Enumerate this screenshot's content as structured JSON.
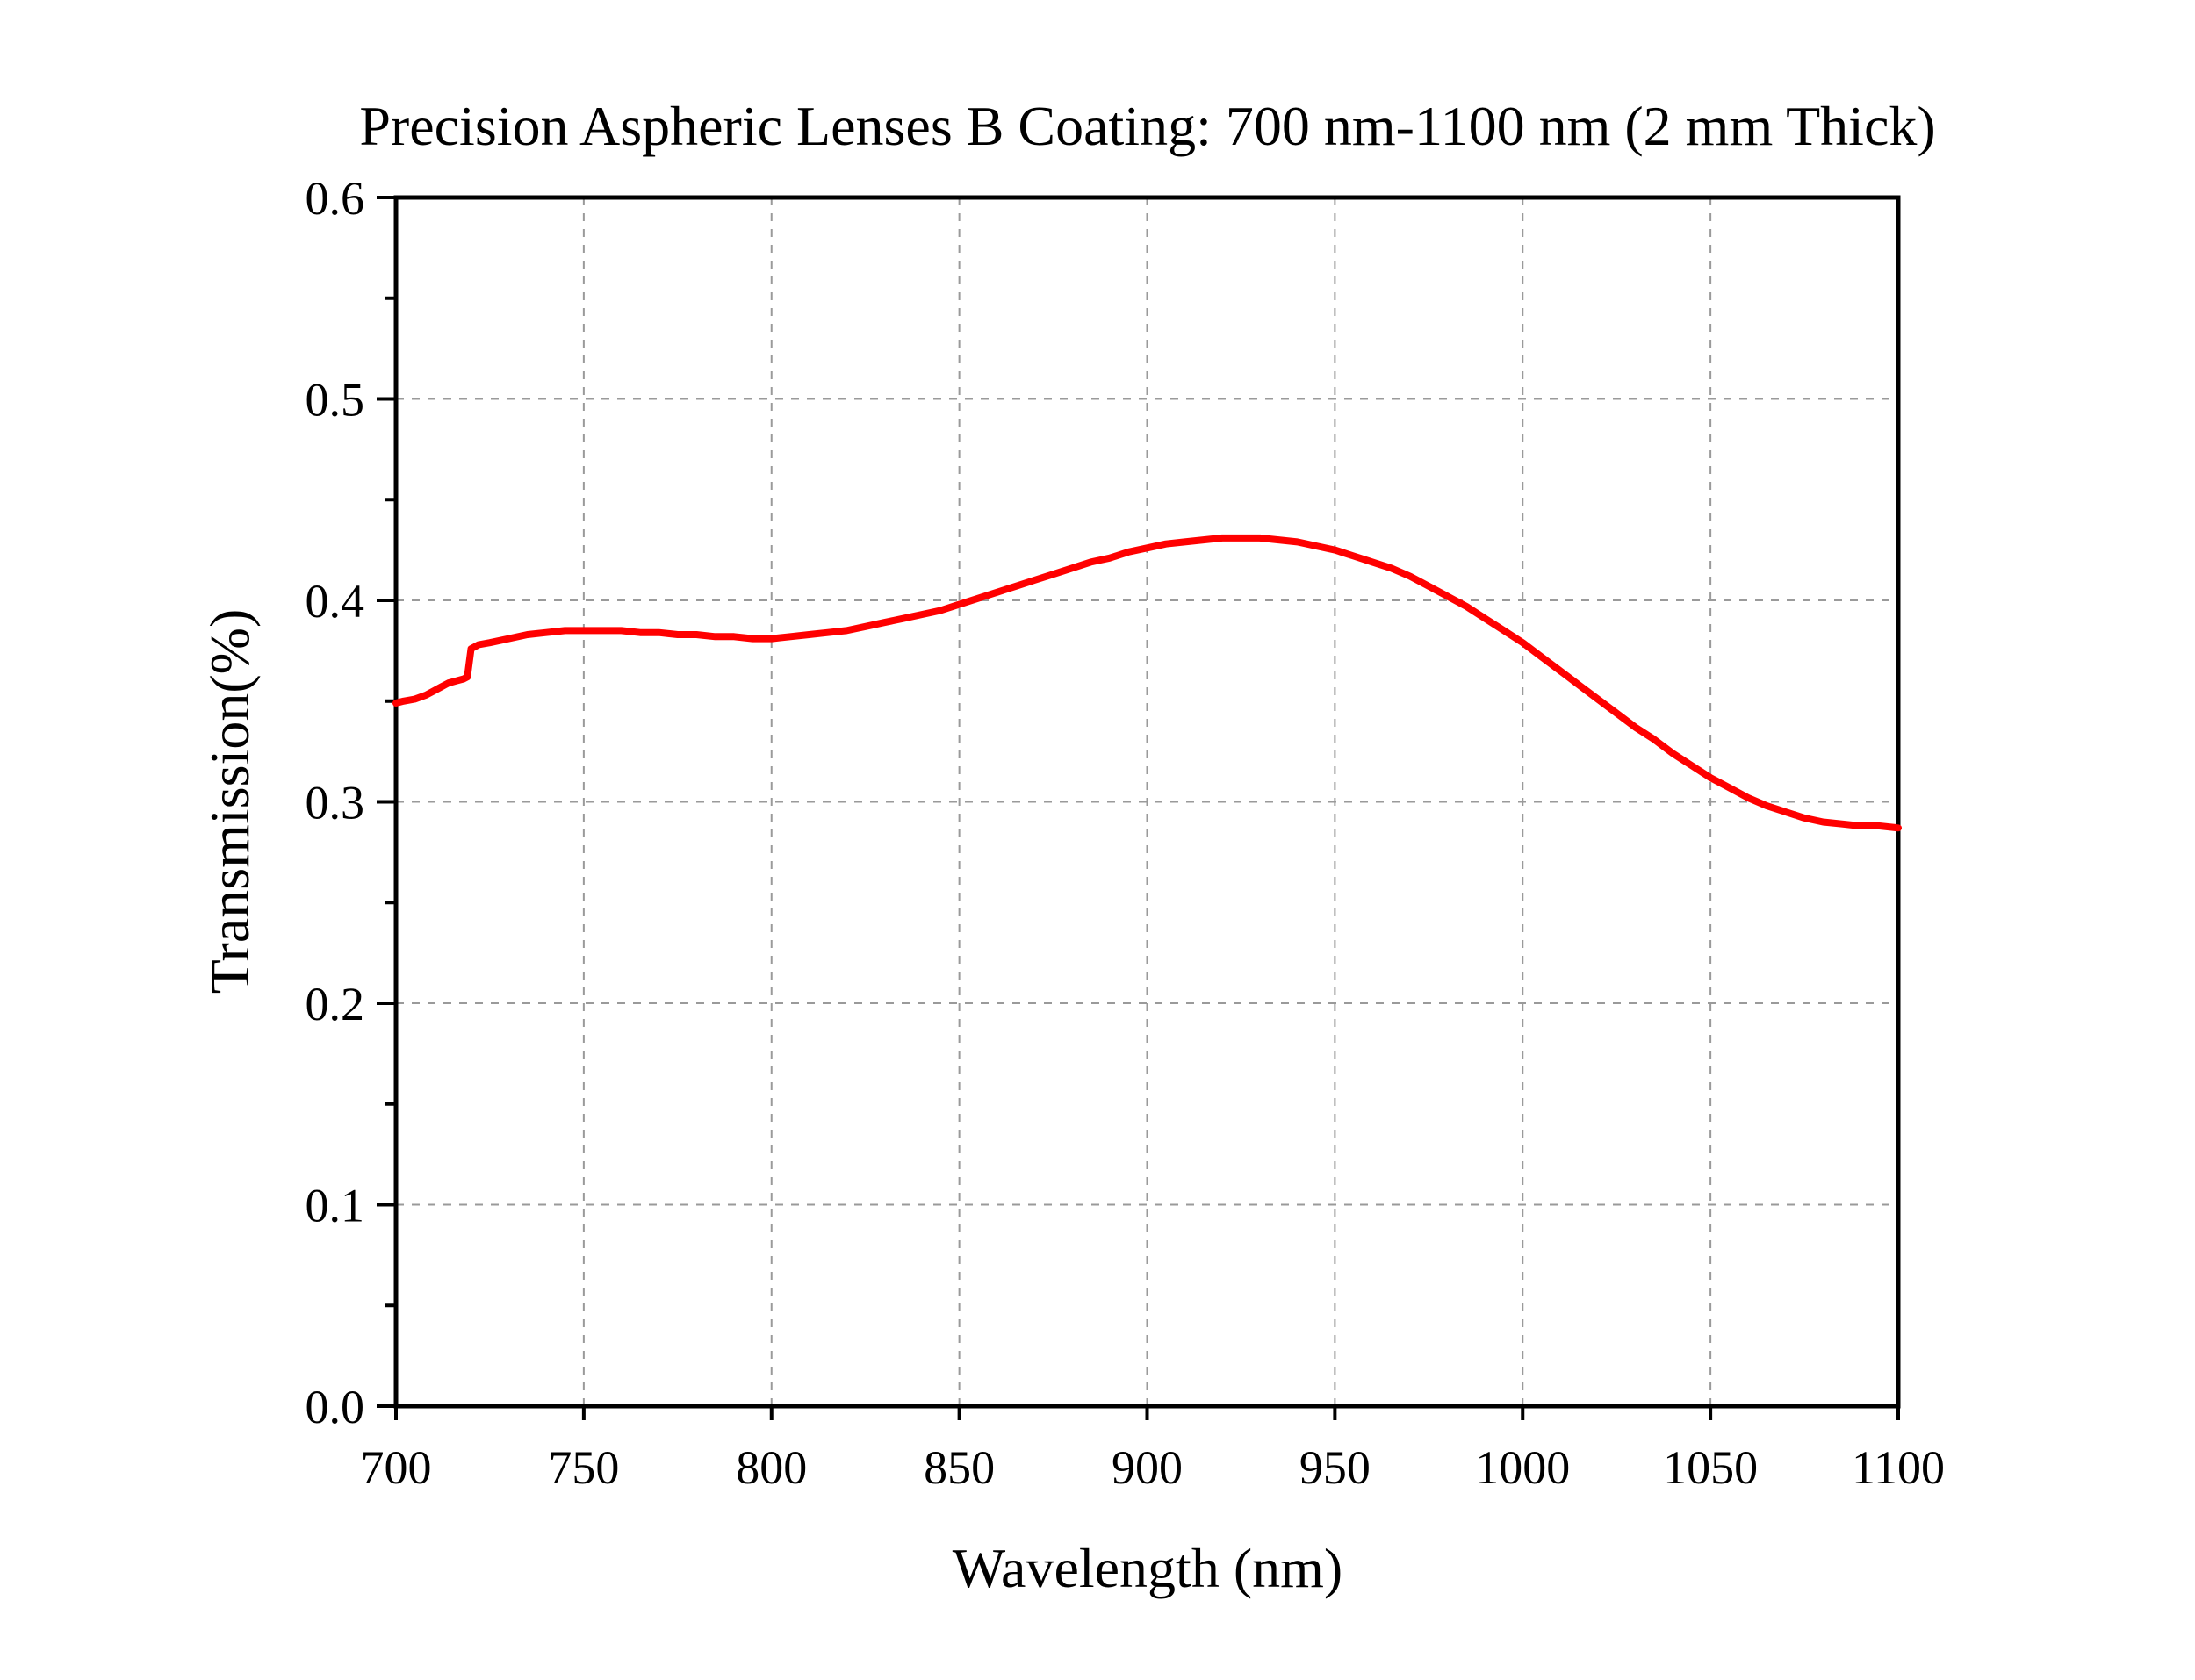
{
  "chart_data": {
    "type": "line",
    "title": "Precision Aspheric Lenses B Coating: 700 nm-1100 nm (2 mm Thick)",
    "xlabel": "Wavelength (nm)",
    "ylabel": "Transmission(%)",
    "xlim": [
      700,
      1100
    ],
    "ylim": [
      0.0,
      0.6
    ],
    "xticks": [
      700,
      750,
      800,
      850,
      900,
      950,
      1000,
      1050,
      1100
    ],
    "xtick_labels": [
      "700",
      "750",
      "800",
      "850",
      "900",
      "950",
      "1000",
      "1050",
      "1100"
    ],
    "yticks": [
      0.0,
      0.1,
      0.2,
      0.3,
      0.4,
      0.5,
      0.6
    ],
    "ytick_labels": [
      "0.0",
      "0.1",
      "0.2",
      "0.3",
      "0.4",
      "0.5",
      "0.6"
    ],
    "y_minor_ticks": [
      0.05,
      0.15,
      0.25,
      0.35,
      0.45,
      0.55
    ],
    "grid": true,
    "legend": "none",
    "series": [
      {
        "name": "B Coating",
        "color": "#ff0000",
        "x": [
          700,
          702,
          705,
          708,
          710,
          712,
          714,
          716,
          718,
          719,
          720,
          722,
          725,
          730,
          735,
          740,
          745,
          750,
          755,
          760,
          765,
          770,
          775,
          780,
          785,
          790,
          795,
          800,
          805,
          810,
          815,
          820,
          825,
          830,
          835,
          840,
          845,
          850,
          855,
          860,
          865,
          870,
          875,
          880,
          885,
          890,
          895,
          900,
          905,
          910,
          915,
          920,
          925,
          930,
          935,
          940,
          945,
          950,
          955,
          960,
          965,
          970,
          975,
          980,
          985,
          990,
          995,
          1000,
          1005,
          1010,
          1015,
          1020,
          1025,
          1030,
          1035,
          1040,
          1045,
          1050,
          1055,
          1060,
          1065,
          1070,
          1075,
          1080,
          1085,
          1090,
          1095,
          1100
        ],
        "values": [
          0.349,
          0.35,
          0.351,
          0.353,
          0.355,
          0.357,
          0.359,
          0.36,
          0.361,
          0.362,
          0.376,
          0.378,
          0.379,
          0.381,
          0.383,
          0.384,
          0.385,
          0.385,
          0.385,
          0.385,
          0.384,
          0.384,
          0.383,
          0.383,
          0.382,
          0.382,
          0.381,
          0.381,
          0.382,
          0.383,
          0.384,
          0.385,
          0.387,
          0.389,
          0.391,
          0.393,
          0.395,
          0.398,
          0.401,
          0.404,
          0.407,
          0.41,
          0.413,
          0.416,
          0.419,
          0.421,
          0.424,
          0.426,
          0.428,
          0.429,
          0.43,
          0.431,
          0.431,
          0.431,
          0.43,
          0.429,
          0.427,
          0.425,
          0.422,
          0.419,
          0.416,
          0.412,
          0.407,
          0.402,
          0.397,
          0.391,
          0.385,
          0.379,
          0.372,
          0.365,
          0.358,
          0.351,
          0.344,
          0.337,
          0.331,
          0.324,
          0.318,
          0.312,
          0.307,
          0.302,
          0.298,
          0.295,
          0.292,
          0.29,
          0.289,
          0.288,
          0.288,
          0.287
        ]
      }
    ]
  }
}
